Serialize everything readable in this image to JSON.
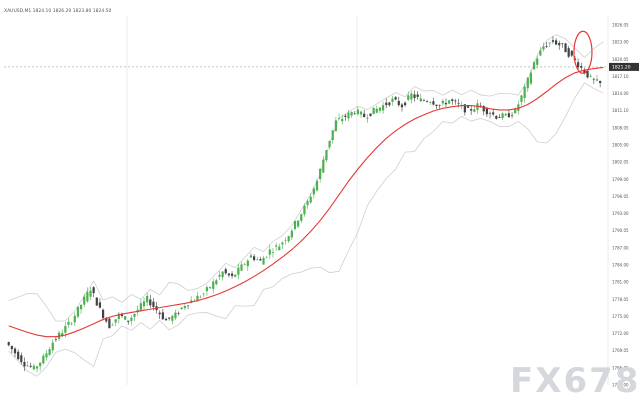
{
  "header": {
    "text": "XAUUSD,M1  1824.10  1826.20  1823.80  1824.50"
  },
  "watermark": "FX678",
  "colors": {
    "up": "#4caf50",
    "down": "#424242",
    "ma": "#e53935",
    "bands": "#cfcfcf",
    "grid": "#e2e2e2",
    "crosshair": "#9e9e9e",
    "price_tag_bg": "#333333",
    "price_tag_text": "#ffffff",
    "annotation": "#e53935",
    "watermark": "#d4d8dd"
  },
  "chart_data": {
    "type": "line",
    "title": "",
    "xlabel": "",
    "ylabel": "",
    "ylim": [
      1762.0,
      1829.0
    ],
    "y_ticks": [
      "1826.05",
      "1823.00",
      "1820.05",
      "1817.10",
      "1814.00",
      "1811.10",
      "1808.05",
      "1805.00",
      "1802.05",
      "1799.00",
      "1796.05",
      "1793.00",
      "1790.05",
      "1787.00",
      "1784.00",
      "1781.00",
      "1778.05",
      "1775.00",
      "1772.00",
      "1769.05",
      "1766.05",
      "1763.00"
    ],
    "current_price_label": "1821.20",
    "current_price": 1821.2,
    "grid": true,
    "series": [
      {
        "kind": "close",
        "values": [
          1770,
          1768,
          1766,
          1765,
          1767,
          1770,
          1772,
          1774,
          1777,
          1780,
          1776,
          1773,
          1775,
          1774,
          1776,
          1778,
          1776,
          1774,
          1775,
          1777,
          1778,
          1779,
          1781,
          1783,
          1782,
          1784,
          1786,
          1785,
          1787,
          1788,
          1790,
          1793,
          1796,
          1800,
          1806,
          1811,
          1812,
          1813,
          1812,
          1813,
          1814,
          1815,
          1814,
          1816,
          1815,
          1815,
          1814,
          1815,
          1814,
          1813,
          1814,
          1813,
          1812,
          1812,
          1813,
          1817,
          1822,
          1825,
          1826,
          1825,
          1823,
          1821,
          1819,
          1818
        ]
      },
      {
        "kind": "moving_average",
        "values": [
          1773,
          1772.4,
          1771.8,
          1771.3,
          1771,
          1771,
          1771.3,
          1771.9,
          1772.6,
          1773.4,
          1774.2,
          1774.8,
          1775.2,
          1775.5,
          1775.8,
          1776.1,
          1776.4,
          1776.7,
          1777,
          1777.3,
          1777.7,
          1778.2,
          1778.8,
          1779.5,
          1780.3,
          1781.2,
          1782.2,
          1783.3,
          1784.5,
          1785.8,
          1787.2,
          1788.8,
          1790.6,
          1792.6,
          1794.9,
          1797.4,
          1799.9,
          1802.2,
          1804.3,
          1806.2,
          1807.9,
          1809.3,
          1810.5,
          1811.5,
          1812.3,
          1813,
          1813.5,
          1813.8,
          1814,
          1814,
          1813.8,
          1813.4,
          1813.2,
          1813.2,
          1813.5,
          1814.2,
          1815.3,
          1816.6,
          1818,
          1819.2,
          1820.1,
          1820.6,
          1820.9,
          1821.1
        ]
      }
    ],
    "annotations": [
      "red-ellipse-circling-latest-drop"
    ]
  }
}
